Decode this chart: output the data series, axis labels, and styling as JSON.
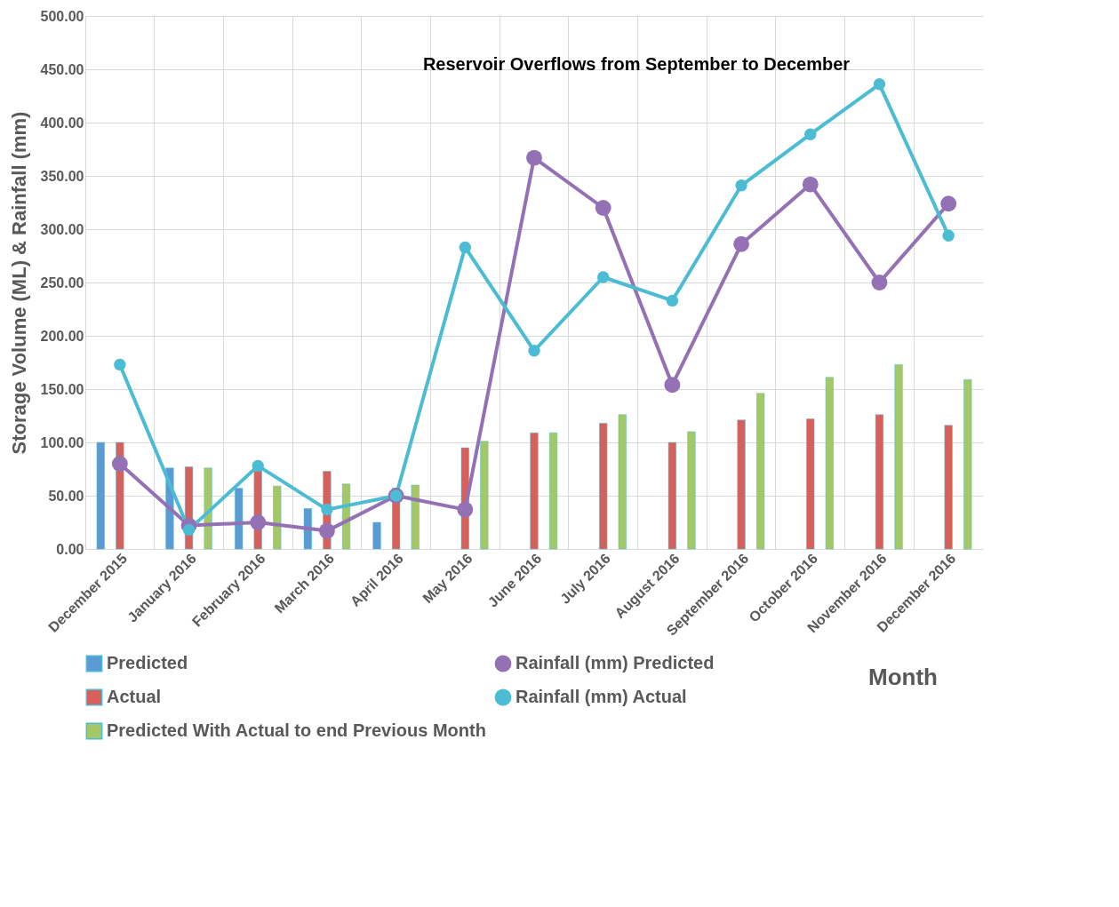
{
  "chart_data": {
    "type": "bar",
    "title": "Reservoir Overflows from September to December",
    "xlabel": "Month",
    "ylabel": "Storage Volume (ML) & Rainfall (mm)",
    "categories": [
      "December 2015",
      "January 2016",
      "February 2016",
      "March 2016",
      "April 2016",
      "May 2016",
      "June 2016",
      "July 2016",
      "August 2016",
      "September 2016",
      "October 2016",
      "November  2016",
      "December 2016"
    ],
    "series": [
      {
        "name": "Predicted",
        "color": "#5b9bd5",
        "values": [
          100,
          76,
          57,
          38,
          25,
          null,
          null,
          null,
          null,
          null,
          null,
          null,
          null
        ]
      },
      {
        "name": "Actual",
        "color": "#d9605a",
        "values": [
          100,
          77,
          76,
          73,
          57,
          95,
          109,
          118,
          100,
          121,
          122,
          126,
          116
        ]
      },
      {
        "name": "Predicted With Actual to end Previous Month",
        "color": "#a5c866",
        "values": [
          null,
          76,
          59,
          61,
          60,
          101,
          109,
          126,
          110,
          146,
          161,
          173,
          159
        ]
      },
      {
        "name": "Rainfall (mm) Predicted",
        "type": "line",
        "color": "#9471b4",
        "values": [
          80,
          22,
          25,
          17,
          50,
          37,
          367,
          320,
          154,
          286,
          342,
          250,
          324
        ]
      },
      {
        "name": "Rainfall (mm) Actual",
        "type": "line",
        "color": "#4bbcd3",
        "values": [
          173,
          18,
          78,
          37,
          50,
          283,
          186,
          255,
          233,
          341,
          389,
          436,
          294
        ]
      }
    ],
    "ylim": [
      0,
      500
    ],
    "yticks": [
      {
        "value": 0,
        "label": "0.00"
      },
      {
        "value": 50,
        "label": "50.00"
      },
      {
        "value": 100,
        "label": "100.00"
      },
      {
        "value": 150,
        "label": "150.00"
      },
      {
        "value": 200,
        "label": "200.00"
      },
      {
        "value": 250,
        "label": "250.00"
      },
      {
        "value": 300,
        "label": "300.00"
      },
      {
        "value": 350,
        "label": "350.00"
      },
      {
        "value": 400,
        "label": "400.00"
      },
      {
        "value": 450,
        "label": "450.00"
      },
      {
        "value": 500,
        "label": "500.00"
      }
    ],
    "grid": true,
    "legend": "bottom",
    "marker": "circle",
    "line_style": "solid"
  }
}
